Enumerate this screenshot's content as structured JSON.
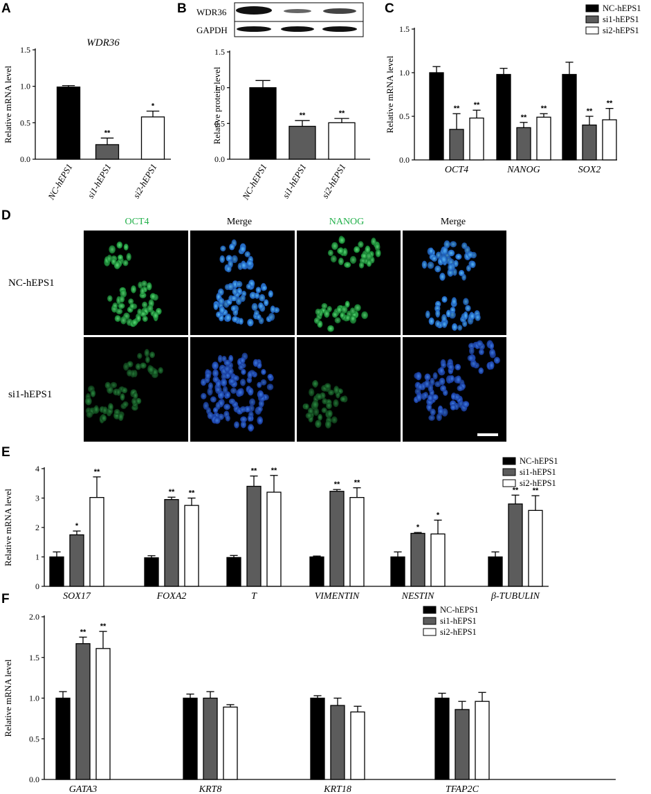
{
  "colors": {
    "nc": "#000000",
    "si1": "#5c5c5c",
    "si2": "#ffffff",
    "outline": "#000000",
    "green_label": "#22b04a",
    "panel_bg": "#000000"
  },
  "panel_labels": [
    "A",
    "B",
    "C",
    "D",
    "E",
    "F"
  ],
  "chart_data": [
    {
      "id": "A",
      "type": "bar",
      "title": "WDR36",
      "title_italic": true,
      "ylabel": "Relative mRNA level",
      "ylim": [
        0,
        1.5
      ],
      "yticks": [
        "0.0",
        "0.5",
        "1.0",
        "1.5"
      ],
      "categories": [
        "NC-hEPS1",
        "si1-hEPS1",
        "si2-hEPS1"
      ],
      "values": [
        0.99,
        0.2,
        0.58
      ],
      "errors": [
        0.02,
        0.09,
        0.08
      ],
      "sig": [
        "",
        "**",
        "*"
      ],
      "fills": [
        "nc",
        "si1",
        "si2"
      ]
    },
    {
      "id": "B",
      "type": "bar",
      "ylabel": "Relative protein level",
      "ylim": [
        0,
        1.5
      ],
      "yticks": [
        "0.0",
        "0.5",
        "1.0",
        "1.5"
      ],
      "categories": [
        "NC-hEPS1",
        "si1-hEPS1",
        "si2-hEPS1"
      ],
      "values": [
        1.0,
        0.46,
        0.51
      ],
      "errors": [
        0.1,
        0.08,
        0.06
      ],
      "sig": [
        "",
        "**",
        "**"
      ],
      "fills": [
        "nc",
        "si1",
        "si2"
      ],
      "blot": {
        "rows": [
          "WDR36",
          "GAPDH"
        ]
      }
    },
    {
      "id": "C",
      "type": "bar",
      "ylabel": "Relative mRNA level",
      "ylim": [
        0,
        1.5
      ],
      "yticks": [
        "0.0",
        "0.5",
        "1.0",
        "1.5"
      ],
      "categories": [
        "OCT4",
        "NANOG",
        "SOX2"
      ],
      "series": [
        {
          "name": "NC-hEPS1",
          "values": [
            1.0,
            0.98,
            0.98
          ],
          "errors": [
            0.07,
            0.07,
            0.14
          ],
          "sig": [
            "",
            "",
            ""
          ]
        },
        {
          "name": "si1-hEPS1",
          "values": [
            0.35,
            0.37,
            0.4
          ],
          "errors": [
            0.18,
            0.06,
            0.1
          ],
          "sig": [
            "**",
            "**",
            "**"
          ]
        },
        {
          "name": "si2-hEPS1",
          "values": [
            0.48,
            0.49,
            0.46
          ],
          "errors": [
            0.09,
            0.04,
            0.13
          ],
          "sig": [
            "**",
            "**",
            "**"
          ]
        }
      ],
      "legend": "top-right"
    },
    {
      "id": "E",
      "type": "bar",
      "ylabel": "Relative mRNA level",
      "ylim": [
        0,
        4
      ],
      "yticks": [
        "0",
        "1",
        "2",
        "3",
        "4"
      ],
      "categories": [
        "SOX17",
        "FOXA2",
        "T",
        "VIMENTIN",
        "NESTIN",
        "β-TUBULIN"
      ],
      "series": [
        {
          "name": "NC-hEPS1",
          "values": [
            1.0,
            0.97,
            0.98,
            1.0,
            1.0,
            1.0
          ],
          "errors": [
            0.17,
            0.07,
            0.07,
            0.03,
            0.17,
            0.17
          ],
          "sig": [
            "",
            "",
            "",
            "",
            "",
            ""
          ]
        },
        {
          "name": "si1-hEPS1",
          "values": [
            1.75,
            2.95,
            3.4,
            3.23,
            1.8,
            2.8
          ],
          "errors": [
            0.13,
            0.08,
            0.35,
            0.06,
            0.03,
            0.3
          ],
          "sig": [
            "*",
            "**",
            "**",
            "**",
            "*",
            "**"
          ]
        },
        {
          "name": "si2-hEPS1",
          "values": [
            3.02,
            2.75,
            3.2,
            3.02,
            1.78,
            2.58
          ],
          "errors": [
            0.7,
            0.25,
            0.57,
            0.33,
            0.47,
            0.5
          ],
          "sig": [
            "**",
            "**",
            "**",
            "**",
            "*",
            "**"
          ]
        }
      ],
      "legend": "top-right"
    },
    {
      "id": "F",
      "type": "bar",
      "ylabel": "Relative mRNA level",
      "ylim": [
        0,
        2.0
      ],
      "yticks": [
        "0.0",
        "0.5",
        "1.0",
        "1.5",
        "2.0"
      ],
      "categories": [
        "GATA3",
        "KRT8",
        "KRT18",
        "TFAP2C"
      ],
      "series": [
        {
          "name": "NC-hEPS1",
          "values": [
            1.0,
            1.0,
            1.0,
            1.0
          ],
          "errors": [
            0.08,
            0.05,
            0.03,
            0.06
          ],
          "sig": [
            "",
            "",
            "",
            ""
          ]
        },
        {
          "name": "si1-hEPS1",
          "values": [
            1.67,
            1.0,
            0.91,
            0.86
          ],
          "errors": [
            0.08,
            0.08,
            0.09,
            0.1
          ],
          "sig": [
            "**",
            "",
            "",
            ""
          ]
        },
        {
          "name": "si2-hEPS1",
          "values": [
            1.61,
            0.89,
            0.83,
            0.96
          ],
          "errors": [
            0.21,
            0.03,
            0.07,
            0.11
          ],
          "sig": [
            "**",
            "",
            "",
            ""
          ]
        }
      ],
      "legend": "top-right"
    }
  ],
  "panel_d": {
    "columns": [
      "OCT4",
      "Merge",
      "NANOG",
      "Merge"
    ],
    "column_colors": [
      "green",
      "black",
      "green",
      "black"
    ],
    "rows": [
      "NC-hEPS1",
      "si1-hEPS1"
    ],
    "scale_bar": true
  }
}
